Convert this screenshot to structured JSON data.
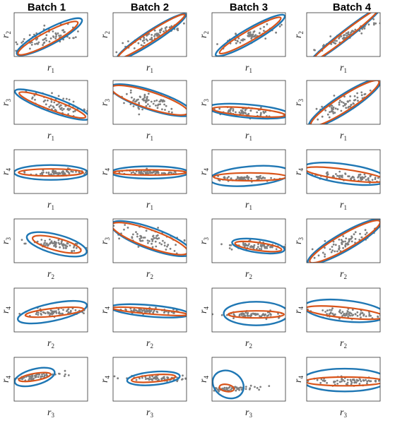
{
  "columns": [
    "Batch 1",
    "Batch 2",
    "Batch 3",
    "Batch 4"
  ],
  "colors": {
    "blue": "#1f77b4",
    "orange": "#d9541a",
    "points": "#7f7f7f",
    "frame": "#333333"
  },
  "chart_data": {
    "type": "scatter",
    "grid": false,
    "series": [
      {
        "name": ""
      },
      {
        "name": ""
      }
    ],
    "panels": [
      {
        "row": 0,
        "col": 0,
        "x_var": "r1",
        "y_var": "r2",
        "slope": 0.45,
        "spread": 0.18,
        "cx": 0.48,
        "cy": 0.55,
        "blue": {
          "cx": 0.48,
          "cy": 0.55,
          "rx": 0.5,
          "ry": 0.18,
          "rot": -28
        },
        "orange": {
          "cx": 0.46,
          "cy": 0.58,
          "rx": 0.46,
          "ry": 0.14,
          "rot": -28
        }
      },
      {
        "row": 0,
        "col": 1,
        "x_var": "r1",
        "y_var": "r2",
        "slope": 0.7,
        "spread": 0.1,
        "cx": 0.55,
        "cy": 0.52,
        "blue": {
          "cx": 0.52,
          "cy": 0.55,
          "rx": 0.56,
          "ry": 0.14,
          "rot": -33
        },
        "orange": {
          "cx": 0.52,
          "cy": 0.54,
          "rx": 0.54,
          "ry": 0.11,
          "rot": -33
        }
      },
      {
        "row": 0,
        "col": 2,
        "x_var": "r1",
        "y_var": "r2",
        "slope": 0.6,
        "spread": 0.12,
        "cx": 0.55,
        "cy": 0.52,
        "blue": {
          "cx": 0.52,
          "cy": 0.52,
          "rx": 0.54,
          "ry": 0.16,
          "rot": -30
        },
        "orange": {
          "cx": 0.52,
          "cy": 0.52,
          "rx": 0.48,
          "ry": 0.12,
          "rot": -30
        }
      },
      {
        "row": 0,
        "col": 3,
        "x_var": "r1",
        "y_var": "r2",
        "slope": 0.9,
        "spread": 0.08,
        "cx": 0.55,
        "cy": 0.52,
        "blue": {
          "cx": 0.52,
          "cy": 0.52,
          "rx": 0.62,
          "ry": 0.1,
          "rot": -38
        },
        "orange": {
          "cx": 0.52,
          "cy": 0.52,
          "rx": 0.58,
          "ry": 0.08,
          "rot": -38
        }
      },
      {
        "row": 1,
        "col": 0,
        "x_var": "r1",
        "y_var": "r3",
        "slope": -0.35,
        "spread": 0.15,
        "cx": 0.6,
        "cy": 0.55,
        "blue": {
          "cx": 0.52,
          "cy": 0.55,
          "rx": 0.54,
          "ry": 0.17,
          "rot": 20
        },
        "orange": {
          "cx": 0.52,
          "cy": 0.56,
          "rx": 0.48,
          "ry": 0.12,
          "rot": 20
        }
      },
      {
        "row": 1,
        "col": 1,
        "x_var": "r1",
        "y_var": "r3",
        "slope": -0.35,
        "spread": 0.18,
        "cx": 0.45,
        "cy": 0.45,
        "blue": {
          "cx": 0.52,
          "cy": 0.45,
          "rx": 0.58,
          "ry": 0.22,
          "rot": 18
        },
        "orange": {
          "cx": 0.5,
          "cy": 0.45,
          "rx": 0.55,
          "ry": 0.19,
          "rot": 18
        }
      },
      {
        "row": 1,
        "col": 2,
        "x_var": "r1",
        "y_var": "r3",
        "slope": -0.05,
        "spread": 0.1,
        "cx": 0.45,
        "cy": 0.72,
        "blue": {
          "cx": 0.5,
          "cy": 0.7,
          "rx": 0.56,
          "ry": 0.15,
          "rot": 5
        },
        "orange": {
          "cx": 0.5,
          "cy": 0.72,
          "rx": 0.5,
          "ry": 0.09,
          "rot": 5
        }
      },
      {
        "row": 1,
        "col": 3,
        "x_var": "r1",
        "y_var": "r3",
        "slope": 0.75,
        "spread": 0.12,
        "cx": 0.5,
        "cy": 0.55,
        "blue": {
          "cx": 0.52,
          "cy": 0.52,
          "rx": 0.58,
          "ry": 0.2,
          "rot": -33
        },
        "orange": {
          "cx": 0.52,
          "cy": 0.52,
          "rx": 0.55,
          "ry": 0.17,
          "rot": -33
        }
      },
      {
        "row": 2,
        "col": 0,
        "x_var": "r1",
        "y_var": "r4",
        "slope": 0.0,
        "spread": 0.07,
        "cx": 0.6,
        "cy": 0.52,
        "blue": {
          "cx": 0.5,
          "cy": 0.52,
          "rx": 0.5,
          "ry": 0.17,
          "rot": 0
        },
        "orange": {
          "cx": 0.5,
          "cy": 0.52,
          "rx": 0.44,
          "ry": 0.08,
          "rot": 0
        }
      },
      {
        "row": 2,
        "col": 1,
        "x_var": "r1",
        "y_var": "r4",
        "slope": 0.0,
        "spread": 0.05,
        "cx": 0.5,
        "cy": 0.52,
        "blue": {
          "cx": 0.5,
          "cy": 0.52,
          "rx": 0.53,
          "ry": 0.14,
          "rot": 0
        },
        "orange": {
          "cx": 0.5,
          "cy": 0.52,
          "rx": 0.5,
          "ry": 0.06,
          "rot": 0
        }
      },
      {
        "row": 2,
        "col": 2,
        "x_var": "r1",
        "y_var": "r4",
        "slope": 0.0,
        "spread": 0.05,
        "cx": 0.4,
        "cy": 0.66,
        "blue": {
          "cx": 0.52,
          "cy": 0.6,
          "rx": 0.55,
          "ry": 0.22,
          "rot": -5
        },
        "orange": {
          "cx": 0.52,
          "cy": 0.62,
          "rx": 0.5,
          "ry": 0.09,
          "rot": 0
        }
      },
      {
        "row": 2,
        "col": 3,
        "x_var": "r1",
        "y_var": "r4",
        "slope": -0.15,
        "spread": 0.08,
        "cx": 0.55,
        "cy": 0.62,
        "blue": {
          "cx": 0.52,
          "cy": 0.55,
          "rx": 0.58,
          "ry": 0.22,
          "rot": 8
        },
        "orange": {
          "cx": 0.52,
          "cy": 0.57,
          "rx": 0.55,
          "ry": 0.12,
          "rot": 8
        }
      },
      {
        "row": 3,
        "col": 0,
        "x_var": "r2",
        "y_var": "r3",
        "slope": -0.25,
        "spread": 0.1,
        "cx": 0.6,
        "cy": 0.58,
        "blue": {
          "cx": 0.58,
          "cy": 0.58,
          "rx": 0.42,
          "ry": 0.22,
          "rot": 15
        },
        "orange": {
          "cx": 0.58,
          "cy": 0.58,
          "rx": 0.34,
          "ry": 0.14,
          "rot": 15
        }
      },
      {
        "row": 3,
        "col": 1,
        "x_var": "r2",
        "y_var": "r3",
        "slope": -0.35,
        "spread": 0.18,
        "cx": 0.5,
        "cy": 0.45,
        "blue": {
          "cx": 0.52,
          "cy": 0.45,
          "rx": 0.58,
          "ry": 0.24,
          "rot": 20
        },
        "orange": {
          "cx": 0.5,
          "cy": 0.45,
          "rx": 0.55,
          "ry": 0.2,
          "rot": 20
        }
      },
      {
        "row": 3,
        "col": 2,
        "x_var": "r2",
        "y_var": "r3",
        "slope": -0.05,
        "spread": 0.07,
        "cx": 0.62,
        "cy": 0.62,
        "blue": {
          "cx": 0.63,
          "cy": 0.62,
          "rx": 0.36,
          "ry": 0.15,
          "rot": 8
        },
        "orange": {
          "cx": 0.63,
          "cy": 0.63,
          "rx": 0.32,
          "ry": 0.09,
          "rot": 8
        }
      },
      {
        "row": 3,
        "col": 3,
        "x_var": "r2",
        "y_var": "r3",
        "slope": 0.7,
        "spread": 0.12,
        "cx": 0.55,
        "cy": 0.52,
        "blue": {
          "cx": 0.52,
          "cy": 0.52,
          "rx": 0.58,
          "ry": 0.2,
          "rot": -30
        },
        "orange": {
          "cx": 0.52,
          "cy": 0.52,
          "rx": 0.55,
          "ry": 0.17,
          "rot": -30
        }
      },
      {
        "row": 4,
        "col": 0,
        "x_var": "r2",
        "y_var": "r4",
        "slope": 0.1,
        "spread": 0.07,
        "cx": 0.6,
        "cy": 0.55,
        "blue": {
          "cx": 0.52,
          "cy": 0.55,
          "rx": 0.48,
          "ry": 0.2,
          "rot": -12
        },
        "orange": {
          "cx": 0.55,
          "cy": 0.55,
          "rx": 0.4,
          "ry": 0.09,
          "rot": -6
        }
      },
      {
        "row": 4,
        "col": 1,
        "x_var": "r2",
        "y_var": "r4",
        "slope": -0.05,
        "spread": 0.05,
        "cx": 0.5,
        "cy": 0.52,
        "blue": {
          "cx": 0.5,
          "cy": 0.52,
          "rx": 0.54,
          "ry": 0.13,
          "rot": 5
        },
        "orange": {
          "cx": 0.5,
          "cy": 0.53,
          "rx": 0.52,
          "ry": 0.06,
          "rot": 5
        }
      },
      {
        "row": 4,
        "col": 2,
        "x_var": "r2",
        "y_var": "r4",
        "slope": 0.0,
        "spread": 0.06,
        "cx": 0.55,
        "cy": 0.6,
        "blue": {
          "cx": 0.6,
          "cy": 0.58,
          "rx": 0.44,
          "ry": 0.27,
          "rot": 0
        },
        "orange": {
          "cx": 0.6,
          "cy": 0.6,
          "rx": 0.38,
          "ry": 0.08,
          "rot": 0
        }
      },
      {
        "row": 4,
        "col": 3,
        "x_var": "r2",
        "y_var": "r4",
        "slope": -0.1,
        "spread": 0.08,
        "cx": 0.55,
        "cy": 0.58,
        "blue": {
          "cx": 0.52,
          "cy": 0.52,
          "rx": 0.56,
          "ry": 0.24,
          "rot": 6
        },
        "orange": {
          "cx": 0.52,
          "cy": 0.56,
          "rx": 0.54,
          "ry": 0.12,
          "rot": 6
        }
      },
      {
        "row": 5,
        "col": 0,
        "x_var": "r3",
        "y_var": "r4",
        "slope": 0.2,
        "spread": 0.06,
        "cx": 0.28,
        "cy": 0.45,
        "blue": {
          "cx": 0.28,
          "cy": 0.45,
          "rx": 0.28,
          "ry": 0.18,
          "rot": -15
        },
        "orange": {
          "cx": 0.28,
          "cy": 0.45,
          "rx": 0.22,
          "ry": 0.08,
          "rot": -10
        }
      },
      {
        "row": 5,
        "col": 1,
        "x_var": "r3",
        "y_var": "r4",
        "slope": 0.0,
        "spread": 0.05,
        "cx": 0.58,
        "cy": 0.48,
        "blue": {
          "cx": 0.55,
          "cy": 0.48,
          "rx": 0.36,
          "ry": 0.15,
          "rot": -5
        },
        "orange": {
          "cx": 0.55,
          "cy": 0.48,
          "rx": 0.3,
          "ry": 0.08,
          "rot": -5
        }
      },
      {
        "row": 5,
        "col": 2,
        "x_var": "r3",
        "y_var": "r4",
        "slope": 0.1,
        "spread": 0.05,
        "cx": 0.2,
        "cy": 0.72,
        "blue": {
          "cx": 0.22,
          "cy": 0.62,
          "rx": 0.22,
          "ry": 0.3,
          "rot": 30
        },
        "orange": {
          "cx": 0.2,
          "cy": 0.7,
          "rx": 0.1,
          "ry": 0.08,
          "rot": 10
        }
      },
      {
        "row": 5,
        "col": 3,
        "x_var": "r3",
        "y_var": "r4",
        "slope": 0.0,
        "spread": 0.08,
        "cx": 0.55,
        "cy": 0.55,
        "blue": {
          "cx": 0.52,
          "cy": 0.52,
          "rx": 0.58,
          "ry": 0.26,
          "rot": 0
        },
        "orange": {
          "cx": 0.52,
          "cy": 0.55,
          "rx": 0.54,
          "ry": 0.1,
          "rot": 0
        }
      }
    ]
  }
}
